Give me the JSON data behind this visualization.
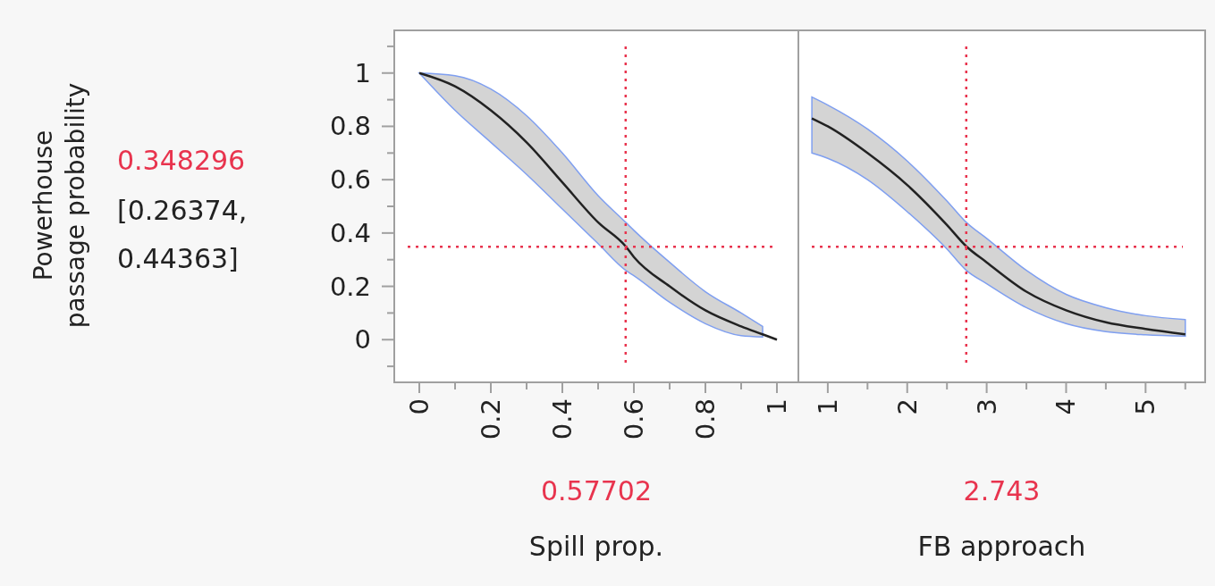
{
  "chart_data": [
    {
      "type": "line",
      "xlabel": "Spill prop.",
      "ylabel": "Powerhouse passage probability",
      "annotations": [
        "[0.26374, 0.44363]"
      ],
      "x": [
        0,
        0.1,
        0.2,
        0.3,
        0.4,
        0.5,
        0.57702,
        0.6,
        0.7,
        0.8,
        0.9,
        0.96,
        1.0
      ],
      "series": [
        {
          "color": "#222222",
          "values": [
            1.0,
            0.95,
            0.86,
            0.74,
            0.59,
            0.44,
            0.35,
            0.31,
            0.2,
            0.11,
            0.05,
            0.02,
            0.0
          ],
          "lower": [
            1.0,
            0.86,
            0.74,
            0.62,
            0.49,
            0.36,
            0.26,
            0.24,
            0.14,
            0.06,
            0.015,
            0.01,
            null
          ],
          "upper": [
            1.0,
            0.99,
            0.94,
            0.84,
            0.7,
            0.54,
            0.44,
            0.41,
            0.29,
            0.18,
            0.1,
            0.05,
            null
          ]
        }
      ],
      "xlim": [
        -0.07,
        1.06
      ],
      "ylim": [
        -0.16,
        1.16
      ],
      "xticks": [
        0,
        {
          "value": 0.1,
          "label": null
        },
        0.2,
        {
          "value": 0.3,
          "label": null
        },
        0.4,
        {
          "value": 0.5,
          "label": null
        },
        0.6,
        {
          "value": 0.7,
          "label": null
        },
        0.8,
        {
          "value": 0.9,
          "label": null
        },
        1
      ],
      "yticks": [
        {
          "value": -0.1,
          "label": null
        },
        0,
        {
          "value": 0.1,
          "label": null
        },
        0.2,
        {
          "value": 0.3,
          "label": null
        },
        0.4,
        {
          "value": 0.5,
          "label": null
        },
        0.6,
        {
          "value": 0.7,
          "label": null
        },
        0.8,
        {
          "value": 0.9,
          "label": null
        },
        1,
        {
          "value": 1.1,
          "label": null
        }
      ],
      "ref_lines": [
        {
          "axis": "x",
          "value": 0.57702,
          "label": "0.57702",
          "color": "#e8344e",
          "line_style": "dotted"
        },
        {
          "axis": "y",
          "value": 0.348296,
          "label": "0.348296",
          "color": "#e8344e",
          "line_style": "dotted"
        }
      ]
    },
    {
      "type": "line",
      "xlabel": "FB approach",
      "x": [
        0.8,
        1.0,
        1.5,
        2.0,
        2.5,
        2.743,
        3.0,
        3.5,
        4.0,
        4.5,
        5.0,
        5.5
      ],
      "series": [
        {
          "color": "#222222",
          "values": [
            0.83,
            0.8,
            0.7,
            0.58,
            0.43,
            0.35,
            0.29,
            0.18,
            0.11,
            0.065,
            0.04,
            0.02
          ],
          "lower": [
            0.7,
            0.68,
            0.6,
            0.48,
            0.34,
            0.26,
            0.21,
            0.12,
            0.06,
            0.03,
            0.018,
            0.013
          ],
          "upper": [
            0.91,
            0.88,
            0.79,
            0.67,
            0.52,
            0.44,
            0.38,
            0.26,
            0.17,
            0.12,
            0.09,
            0.075
          ]
        }
      ],
      "xlim": [
        0.63,
        5.75
      ],
      "ylim": [
        -0.16,
        1.16
      ],
      "xticks": [
        1,
        {
          "value": 1.5,
          "label": null
        },
        2,
        {
          "value": 2.5,
          "label": null
        },
        3,
        {
          "value": 3.5,
          "label": null
        },
        4,
        {
          "value": 4.5,
          "label": null
        },
        5,
        {
          "value": 5.5,
          "label": null
        }
      ],
      "tick_labels": "x",
      "ref_lines": [
        {
          "axis": "x",
          "value": 2.743,
          "label": "2.743",
          "color": "#e8344e",
          "line_style": "dotted"
        },
        {
          "axis": "y",
          "value": 0.348296,
          "color": "#e8344e",
          "line_style": "dotted"
        }
      ]
    }
  ]
}
